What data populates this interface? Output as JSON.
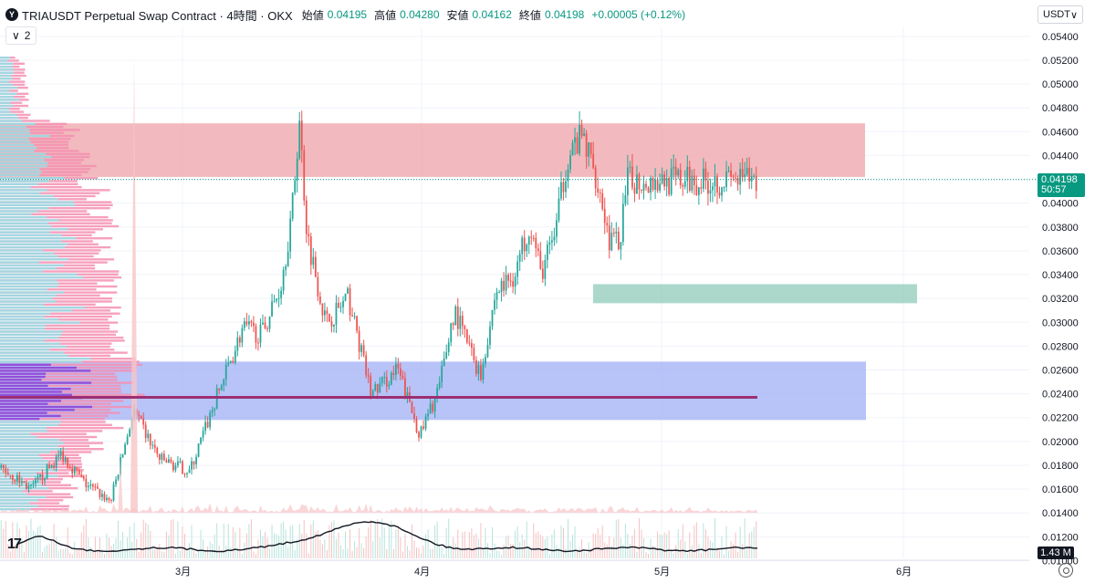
{
  "header": {
    "logo_letter": "Y",
    "title": "TRIAUSDT Perpetual Swap Contract · 4時間 · OKX",
    "ohlc": [
      {
        "label": "始値",
        "value": "0.04195"
      },
      {
        "label": "高値",
        "value": "0.04280"
      },
      {
        "label": "安値",
        "value": "0.04162"
      },
      {
        "label": "終値",
        "value": "0.04198"
      }
    ],
    "change": "+0.00005 (+0.12%)"
  },
  "indicator_toggle": {
    "chevron": "∨",
    "count": "2"
  },
  "currency": {
    "label": "USDT",
    "chevron": "∨"
  },
  "price_label": {
    "price": "0.04198",
    "countdown": "50:57"
  },
  "volume_label": "1.43 M",
  "tv_logo": "17",
  "colors": {
    "up": "#26a69a",
    "down": "#ef5350",
    "resistance_zone": "#eda3a8",
    "support_zone_teal": "#8fcbb9",
    "support_zone_blue": "#9aa9f5",
    "poc_line": "#9c2f73",
    "profile_up": "#8ee3ea",
    "profile_down": "#f48fb1"
  },
  "chart_data": {
    "type": "candlestick",
    "ylim": [
      0.0108,
      0.0546
    ],
    "y_ticks": [
      "0.05400",
      "0.05200",
      "0.05000",
      "0.04800",
      "0.04600",
      "0.04400",
      "0.04200",
      "0.04000",
      "0.03800",
      "0.03600",
      "0.03400",
      "0.03200",
      "0.03000",
      "0.02800",
      "0.02600",
      "0.02400",
      "0.02200",
      "0.02000",
      "0.01800",
      "0.01600",
      "0.01400",
      "0.01200",
      "0.01000"
    ],
    "x_ticks": [
      "3月",
      "4月",
      "5月",
      "6月"
    ],
    "path_anchors": [
      {
        "t": 0.0,
        "price": 0.0178
      },
      {
        "t": 0.04,
        "price": 0.016
      },
      {
        "t": 0.08,
        "price": 0.019
      },
      {
        "t": 0.11,
        "price": 0.0165
      },
      {
        "t": 0.145,
        "price": 0.015
      },
      {
        "t": 0.175,
        "price": 0.0225
      },
      {
        "t": 0.21,
        "price": 0.0185
      },
      {
        "t": 0.25,
        "price": 0.0175
      },
      {
        "t": 0.29,
        "price": 0.0245
      },
      {
        "t": 0.32,
        "price": 0.0295
      },
      {
        "t": 0.345,
        "price": 0.029
      },
      {
        "t": 0.37,
        "price": 0.033
      },
      {
        "t": 0.385,
        "price": 0.039
      },
      {
        "t": 0.395,
        "price": 0.047
      },
      {
        "t": 0.405,
        "price": 0.0375
      },
      {
        "t": 0.43,
        "price": 0.03
      },
      {
        "t": 0.46,
        "price": 0.032
      },
      {
        "t": 0.49,
        "price": 0.024
      },
      {
        "t": 0.525,
        "price": 0.026
      },
      {
        "t": 0.555,
        "price": 0.0205
      },
      {
        "t": 0.58,
        "price": 0.0245
      },
      {
        "t": 0.6,
        "price": 0.031
      },
      {
        "t": 0.635,
        "price": 0.0255
      },
      {
        "t": 0.655,
        "price": 0.0325
      },
      {
        "t": 0.68,
        "price": 0.034
      },
      {
        "t": 0.7,
        "price": 0.0385
      },
      {
        "t": 0.715,
        "price": 0.034
      },
      {
        "t": 0.735,
        "price": 0.038
      },
      {
        "t": 0.75,
        "price": 0.044
      },
      {
        "t": 0.77,
        "price": 0.0455
      },
      {
        "t": 0.79,
        "price": 0.042
      },
      {
        "t": 0.805,
        "price": 0.037
      },
      {
        "t": 0.818,
        "price": 0.0365
      },
      {
        "t": 0.83,
        "price": 0.0419
      }
    ],
    "zones": [
      {
        "name": "resistance",
        "from": 0.0422,
        "to": 0.0467
      },
      {
        "name": "support-teal",
        "from": 0.0316,
        "to": 0.0332
      },
      {
        "name": "support-blue",
        "from": 0.0218,
        "to": 0.0267
      }
    ],
    "poc_price": 0.0237,
    "last_price": 0.04198
  }
}
